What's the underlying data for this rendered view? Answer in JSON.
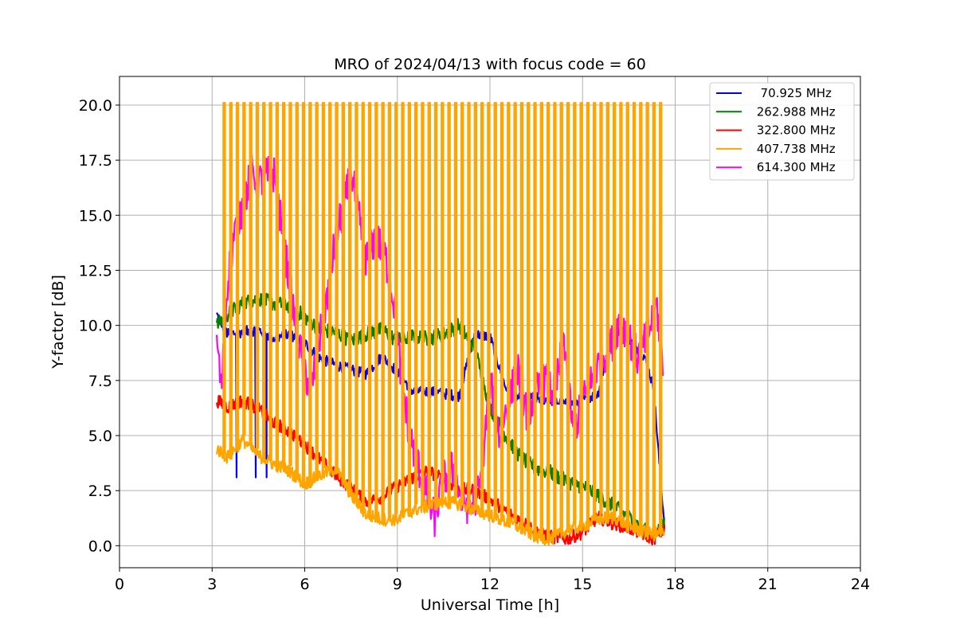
{
  "chart_data": {
    "type": "line",
    "title": "MRO of 2024/04/13 with focus code = 60",
    "xlabel": "Universal Time [h]",
    "ylabel": "Y-factor [dB]",
    "xlim": [
      0,
      24
    ],
    "ylim": [
      -1.0,
      21.3
    ],
    "xticks": [
      0,
      3,
      6,
      9,
      12,
      15,
      18,
      21,
      24
    ],
    "xtick_labels": [
      "0",
      "3",
      "6",
      "9",
      "12",
      "15",
      "18",
      "21",
      "24"
    ],
    "yticks": [
      0.0,
      2.5,
      5.0,
      7.5,
      10.0,
      12.5,
      15.0,
      17.5,
      20.0
    ],
    "ytick_labels": [
      "0.0",
      "2.5",
      "5.0",
      "7.5",
      "10.0",
      "12.5",
      "15.0",
      "17.5",
      "20.0"
    ],
    "grid": true,
    "legend_position": "top-right",
    "series": [
      {
        "name": "  70.925 MHz",
        "color": "#0000ff",
        "x": [
          3.15,
          3.5,
          4.0,
          4.5,
          5.0,
          5.5,
          6.0,
          6.5,
          7.0,
          7.5,
          8.0,
          8.5,
          9.0,
          9.5,
          10.0,
          10.5,
          11.0,
          11.5,
          12.0,
          12.5,
          13.0,
          13.5,
          14.0,
          14.5,
          15.0,
          15.5,
          16.0,
          16.5,
          17.0,
          17.3,
          17.5,
          17.65
        ],
        "y": [
          10.5,
          9.6,
          9.7,
          9.8,
          9.4,
          9.6,
          9.2,
          8.5,
          8.2,
          8.0,
          7.8,
          8.6,
          7.9,
          7.0,
          7.0,
          6.9,
          6.8,
          9.6,
          9.5,
          7.2,
          6.6,
          6.7,
          6.6,
          6.4,
          6.6,
          6.9,
          10.0,
          9.4,
          8.6,
          7.2,
          3.5,
          1.0
        ]
      },
      {
        "name": " 262.988 MHz",
        "color": "#008000",
        "x": [
          3.15,
          3.5,
          4.0,
          4.5,
          5.0,
          5.5,
          6.0,
          6.5,
          7.0,
          7.5,
          8.0,
          8.5,
          9.0,
          9.5,
          10.0,
          10.5,
          11.0,
          11.5,
          12.0,
          12.5,
          13.0,
          13.5,
          14.0,
          14.5,
          15.0,
          15.5,
          16.0,
          16.5,
          17.0,
          17.3,
          17.5,
          17.65
        ],
        "y": [
          10.0,
          10.5,
          11.0,
          11.2,
          11.0,
          10.9,
          10.4,
          9.8,
          9.7,
          9.3,
          9.6,
          9.8,
          9.3,
          9.5,
          9.4,
          9.6,
          10.0,
          9.0,
          6.3,
          5.0,
          4.0,
          3.5,
          3.3,
          2.9,
          2.7,
          2.3,
          1.8,
          1.3,
          0.7,
          0.4,
          0.8,
          1.0
        ]
      },
      {
        "name": " 322.800 MHz",
        "color": "#ff0000",
        "x": [
          3.15,
          3.5,
          4.0,
          4.5,
          5.0,
          5.5,
          6.0,
          6.5,
          7.0,
          7.5,
          8.0,
          8.5,
          9.0,
          9.5,
          10.0,
          10.5,
          11.0,
          11.5,
          12.0,
          12.5,
          13.0,
          13.5,
          14.0,
          14.5,
          15.0,
          15.5,
          16.0,
          16.5,
          17.0,
          17.3,
          17.5,
          17.65
        ],
        "y": [
          6.6,
          6.3,
          6.6,
          6.2,
          5.6,
          5.2,
          4.6,
          3.9,
          3.2,
          2.6,
          2.0,
          2.2,
          2.7,
          3.1,
          3.4,
          3.0,
          2.6,
          2.5,
          2.1,
          1.6,
          1.1,
          0.7,
          0.4,
          0.3,
          0.6,
          1.3,
          1.0,
          0.8,
          0.5,
          0.3,
          0.6,
          0.7
        ]
      },
      {
        "name": " 407.738 MHz",
        "color": "#ffa500",
        "x": [
          3.15,
          3.5,
          4.0,
          4.5,
          5.0,
          5.5,
          6.0,
          6.5,
          7.0,
          7.5,
          8.0,
          8.5,
          9.0,
          9.5,
          10.0,
          10.5,
          11.0,
          11.5,
          12.0,
          12.5,
          13.0,
          13.5,
          14.0,
          14.5,
          15.0,
          15.5,
          16.0,
          16.5,
          17.0,
          17.3,
          17.5,
          17.65
        ],
        "y": [
          4.4,
          4.0,
          4.8,
          4.1,
          3.7,
          3.4,
          2.8,
          3.2,
          3.5,
          2.3,
          1.4,
          1.2,
          1.2,
          1.6,
          1.8,
          2.0,
          1.9,
          1.6,
          1.4,
          1.1,
          0.8,
          0.4,
          0.3,
          0.7,
          0.9,
          1.2,
          1.3,
          0.9,
          0.6,
          0.5,
          0.6,
          0.5
        ],
        "spike_value": 20.1,
        "spike_base": 11.1,
        "spike_start": 3.15,
        "spike_end": 17.5,
        "spike_count": 68
      },
      {
        "name": " 614.300 MHz",
        "color": "#ff00ff",
        "x": [
          3.15,
          3.3,
          3.5,
          3.7,
          4.0,
          4.3,
          4.5,
          4.8,
          5.0,
          5.3,
          5.6,
          5.9,
          6.2,
          6.5,
          6.8,
          7.0,
          7.3,
          7.5,
          7.8,
          8.0,
          8.3,
          8.6,
          8.9,
          9.1,
          9.4,
          9.7,
          10.0,
          10.2,
          10.5,
          10.8,
          11.1,
          11.4,
          11.7,
          12.0,
          12.3,
          12.6,
          12.9,
          13.2,
          13.5,
          13.8,
          14.1,
          14.4,
          14.7,
          15.0,
          15.3,
          15.6,
          15.9,
          16.2,
          16.5,
          16.8,
          17.1,
          17.4,
          17.6
        ],
        "y": [
          9.5,
          7.0,
          12.0,
          14.0,
          15.5,
          17.0,
          16.5,
          16.8,
          16.9,
          14.0,
          11.0,
          8.5,
          7.0,
          9.5,
          12.0,
          14.0,
          15.5,
          17.0,
          14.5,
          13.0,
          14.0,
          13.2,
          11.0,
          8.0,
          5.0,
          3.5,
          2.0,
          1.2,
          3.0,
          3.5,
          2.0,
          1.8,
          2.8,
          7.5,
          5.0,
          6.5,
          8.0,
          6.0,
          7.0,
          7.5,
          6.8,
          9.5,
          5.0,
          6.5,
          7.5,
          8.5,
          9.0,
          10.2,
          9.5,
          8.5,
          9.5,
          11.0,
          8.0
        ]
      }
    ]
  }
}
